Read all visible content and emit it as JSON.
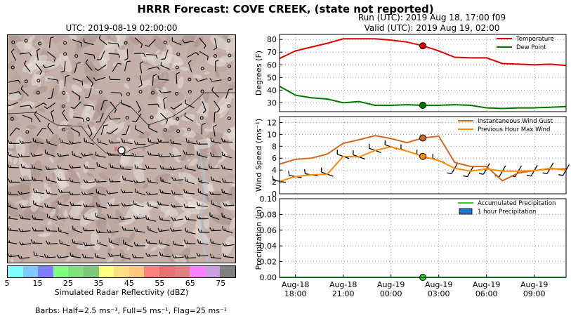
{
  "title": "HRRR Forecast: COVE CREEK, (state not reported)",
  "run_label": "Run (UTC): 2019 Aug 18, 17:00 f09",
  "valid_label": "Valid (UTC): 2019 Aug 19, 02:00",
  "map": {
    "title": "UTC: 2019-08-19 02:00:00",
    "colorbar_label": "Simulated Radar Reflectivity (dBZ)",
    "colorbar_ticks": [
      "5",
      "15",
      "25",
      "35",
      "45",
      "55",
      "65",
      "75"
    ],
    "colorbar_colors": [
      "#80ffff",
      "#80c8ff",
      "#8080ff",
      "#80ff80",
      "#80e080",
      "#80c880",
      "#ffff80",
      "#ffe080",
      "#ffc880",
      "#ff8080",
      "#e87070",
      "#e08080",
      "#ff80ff",
      "#c8a0e0",
      "#808080"
    ],
    "barbs_note": "Barbs: Half=2.5 ms⁻¹, Full=5 ms⁻¹, Flag=25 ms⁻¹"
  },
  "chart_data": [
    {
      "type": "line",
      "ylabel": "Degrees (F)",
      "ylim": [
        23,
        84
      ],
      "yticks": [
        30,
        40,
        50,
        60,
        70,
        80
      ],
      "grid": true,
      "legend": "top-right",
      "x": [
        0,
        1,
        2,
        3,
        4,
        5,
        6,
        7,
        8,
        9,
        10,
        11,
        12,
        13,
        14,
        15,
        16,
        17,
        18
      ],
      "current_x": 9,
      "series": [
        {
          "name": "Temperature",
          "color": "#dd0000",
          "values": [
            65,
            71,
            74,
            77,
            80.5,
            80.5,
            80.5,
            79.5,
            78,
            75,
            71,
            66,
            65.5,
            65.5,
            61,
            60.5,
            60,
            60.5,
            59.5
          ]
        },
        {
          "name": "Dew Point",
          "color": "#007700",
          "values": [
            43,
            36,
            34,
            33,
            30,
            31,
            28,
            28,
            28.5,
            28,
            28,
            28.5,
            28,
            26,
            25.5,
            26,
            26,
            26.5,
            27
          ]
        }
      ]
    },
    {
      "type": "line",
      "ylabel": "Wind Speed (ms⁻¹)",
      "ylim": [
        0,
        13
      ],
      "yticks": [
        0,
        2,
        4,
        6,
        8,
        10,
        12
      ],
      "grid": true,
      "legend": "top-right",
      "x": [
        0,
        1,
        2,
        3,
        4,
        5,
        6,
        7,
        8,
        9,
        10,
        11,
        12,
        13,
        14,
        15,
        16,
        17,
        18
      ],
      "current_x": 9,
      "series": [
        {
          "name": "Instantaneous Wind Gust",
          "color": "#d2691e",
          "values": [
            5,
            5.8,
            6,
            6.7,
            8.5,
            9.1,
            9.8,
            9.3,
            8.6,
            9.4,
            9.7,
            5.3,
            4.6,
            4.6,
            2.2,
            3.5,
            3.9,
            4.2,
            4.2
          ]
        },
        {
          "name": "Previous Hour Max Wind",
          "color": "#ff8c00",
          "values": [
            2.1,
            2.9,
            3.2,
            3.3,
            6.3,
            6.2,
            7.3,
            7.9,
            7.2,
            6.3,
            5.6,
            4.3,
            3.8,
            4.2,
            3.8,
            3.8,
            3.9,
            4.3,
            4
          ]
        }
      ]
    },
    {
      "type": "line",
      "ylabel": "Precipitation (in)",
      "ylim": [
        0,
        0.1
      ],
      "yticks": [
        0.0,
        0.02,
        0.04,
        0.06,
        0.08,
        0.1
      ],
      "ytick_labels": [
        "0.00",
        "0.02",
        "0.04",
        "0.06",
        "0.08",
        "0.10"
      ],
      "grid": true,
      "legend": "top-right",
      "x": [
        0,
        1,
        2,
        3,
        4,
        5,
        6,
        7,
        8,
        9,
        10,
        11,
        12,
        13,
        14,
        15,
        16,
        17,
        18
      ],
      "current_x": 9,
      "series": [
        {
          "name": "Accumulated Precipitation",
          "color": "#33cc33",
          "values": [
            0,
            0,
            0,
            0,
            0,
            0,
            0,
            0,
            0,
            0,
            0,
            0,
            0,
            0,
            0,
            0,
            0,
            0,
            0
          ]
        },
        {
          "name": "1 hour Precipitation",
          "color": "#1e78d2",
          "kind": "bar",
          "values": [
            0,
            0,
            0,
            0,
            0,
            0,
            0,
            0,
            0,
            0,
            0,
            0,
            0,
            0,
            0,
            0,
            0,
            0,
            0
          ]
        }
      ]
    }
  ],
  "x_axis": {
    "ticks": [
      {
        "x": 1,
        "line1": "Aug-18",
        "line2": "18:00"
      },
      {
        "x": 4,
        "line1": "Aug-18",
        "line2": "21:00"
      },
      {
        "x": 7,
        "line1": "Aug-19",
        "line2": "00:00"
      },
      {
        "x": 10,
        "line1": "Aug-19",
        "line2": "03:00"
      },
      {
        "x": 13,
        "line1": "Aug-19",
        "line2": "06:00"
      },
      {
        "x": 16,
        "line1": "Aug-19",
        "line2": "09:00"
      }
    ]
  }
}
